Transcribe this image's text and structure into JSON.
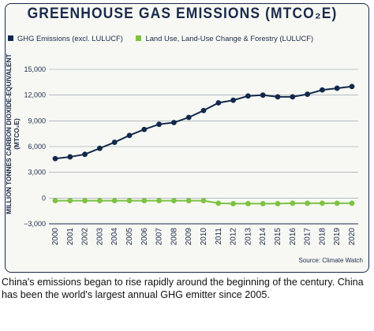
{
  "title": "GREENHOUSE GAS EMISSIONS (MTCO₂E)",
  "legend": [
    {
      "label": "GHG Emissions (excl. LULUCF)",
      "color": "#12284b"
    },
    {
      "label": "Land Use, Land-Use Change & Forestry (LULUCF)",
      "color": "#7dc242"
    }
  ],
  "ylabel_line1": "MILLION TONNES CARBON DIOXIDE-EQUIVALENT",
  "ylabel_line2": "(MTCO₂E)",
  "source": "Source: Climate Watch",
  "caption": "China's emissions began to rise rapidly around the beginning of the century. China has been the world's largest annual GHG emitter since 2005.",
  "chart_data": {
    "type": "line",
    "x": [
      "2000",
      "2001",
      "2002",
      "2003",
      "2004",
      "2005",
      "2006",
      "2007",
      "2008",
      "2009",
      "2010",
      "2011",
      "2012",
      "2013",
      "2014",
      "2015",
      "2016",
      "2017",
      "2018",
      "2019",
      "2020"
    ],
    "series": [
      {
        "name": "GHG Emissions (excl. LULUCF)",
        "color": "#12284b",
        "values": [
          4600,
          4800,
          5100,
          5800,
          6500,
          7300,
          8000,
          8600,
          8800,
          9400,
          10200,
          11100,
          11400,
          11900,
          12000,
          11800,
          11800,
          12100,
          12600,
          12800,
          13000
        ]
      },
      {
        "name": "Land Use, Land-Use Change & Forestry (LULUCF)",
        "color": "#7dc242",
        "values": [
          -300,
          -300,
          -300,
          -300,
          -300,
          -300,
          -300,
          -300,
          -300,
          -300,
          -300,
          -600,
          -650,
          -650,
          -650,
          -650,
          -600,
          -600,
          -600,
          -600,
          -600
        ]
      }
    ],
    "yticks": [
      "15,000",
      "12,000",
      "9,000",
      "6,000",
      "3,000",
      "0",
      "−3,000"
    ],
    "ytick_values": [
      15000,
      12000,
      9000,
      6000,
      3000,
      0,
      -3000
    ],
    "ylim": [
      -3000,
      15000
    ],
    "grid": "horizontal"
  }
}
